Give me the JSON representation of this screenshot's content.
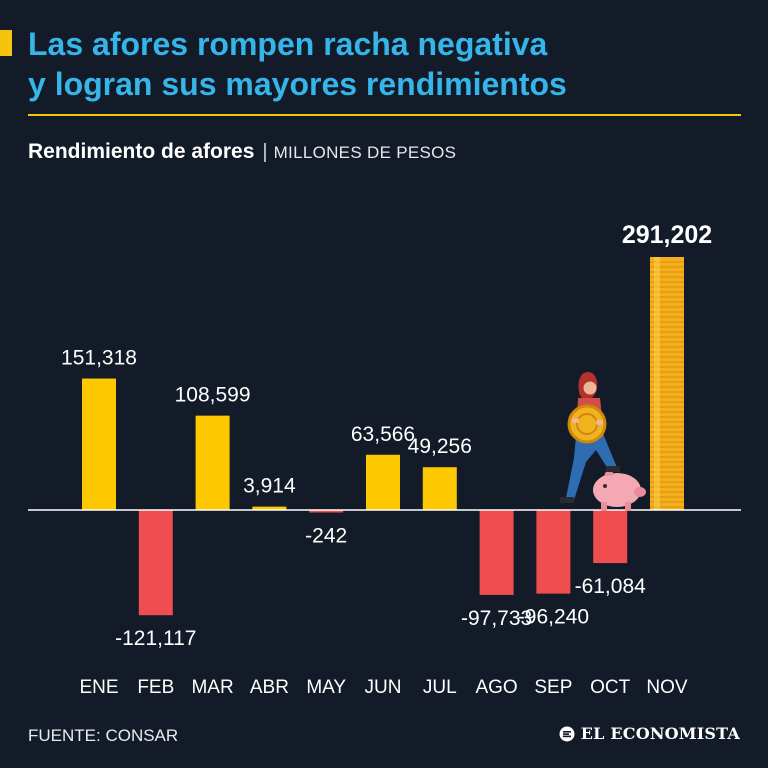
{
  "header": {
    "title_line1": "Las afores rompen racha negativa",
    "title_line2": "y logran sus mayores rendimientos",
    "subtitle": "Rendimiento de afores",
    "subtitle_separator": "|",
    "unit": "MILLONES DE PESOS"
  },
  "colors": {
    "background": "#121b27",
    "title": "#35b5ea",
    "positive": "#fec800",
    "negative": "#ef4d4f",
    "highlight": "#f4b01c",
    "accent": "#f6c40e"
  },
  "chart_data": {
    "type": "bar",
    "title": "Rendimiento de afores",
    "ylabel": "MILLONES DE PESOS",
    "xlabel": "",
    "categories": [
      "ENE",
      "FEB",
      "MAR",
      "ABR",
      "MAY",
      "JUN",
      "JUL",
      "AGO",
      "SEP",
      "OCT",
      "NOV"
    ],
    "values": [
      151318,
      -121117,
      108599,
      3914,
      -242,
      63566,
      49256,
      -97733,
      -96240,
      -61084,
      291202
    ],
    "labels": [
      "151,318",
      "-121,117",
      "108,599",
      "3,914",
      "-242",
      "63,566",
      "49,256",
      "-97,733",
      "-96,240",
      "-61,084",
      "291,202"
    ],
    "highlight_index": 10,
    "ylim": [
      -170000,
      300000
    ],
    "grid": false
  },
  "footer": {
    "source": "FUENTE: CONSAR",
    "brand": "EL ECONOMISTA"
  }
}
